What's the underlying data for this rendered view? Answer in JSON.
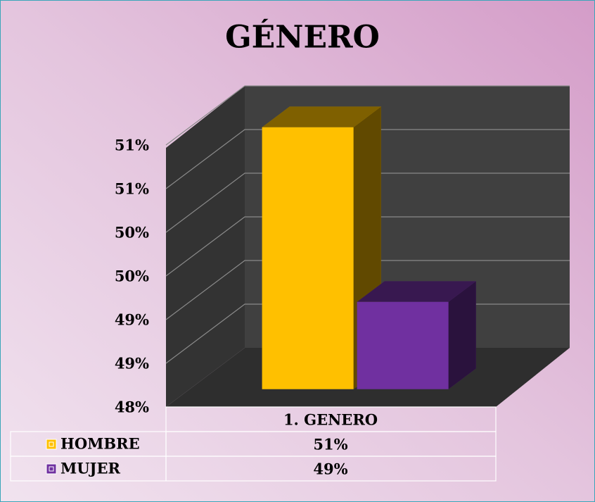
{
  "chart_data": {
    "type": "bar",
    "title": "GÉNERO",
    "categories": [
      "1. GENERO"
    ],
    "series": [
      {
        "name": "HOMBRE",
        "color": "#ffc000",
        "values": [
          51
        ],
        "value_labels": [
          "51%"
        ]
      },
      {
        "name": "MUJER",
        "color": "#7030a0",
        "values": [
          49
        ],
        "value_labels": [
          "49%"
        ]
      }
    ],
    "ylim": [
      48,
      51
    ],
    "yticks": [
      {
        "value": 48,
        "label": "48%"
      },
      {
        "value": 48.5,
        "label": "49%"
      },
      {
        "value": 49,
        "label": "49%"
      },
      {
        "value": 49.5,
        "label": "50%"
      },
      {
        "value": 50,
        "label": "50%"
      },
      {
        "value": 50.5,
        "label": "51%"
      },
      {
        "value": 51,
        "label": "51%"
      }
    ],
    "grid": true
  }
}
